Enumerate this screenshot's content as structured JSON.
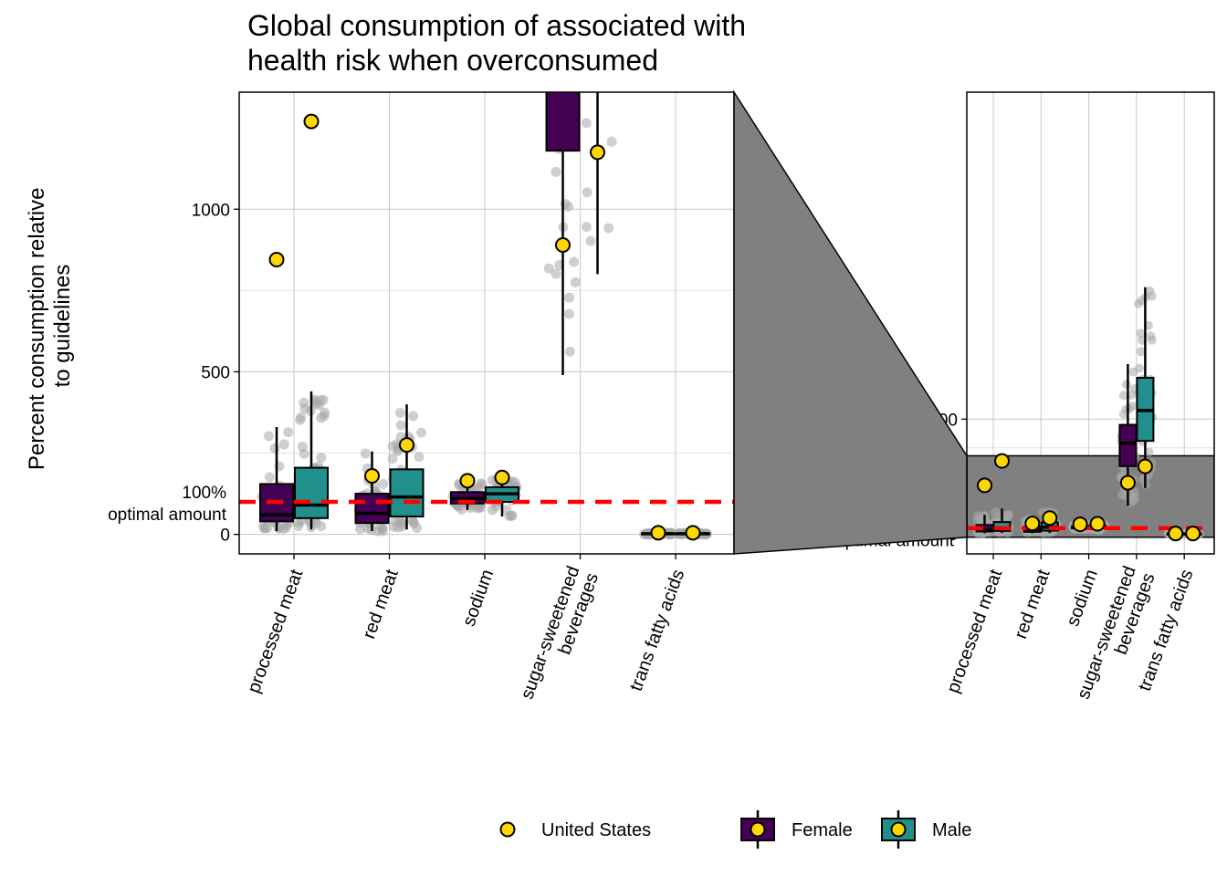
{
  "chart_data": {
    "type": "boxplot",
    "title_lines": [
      "Global consumption of associated with",
      "health risk when overconsumed"
    ],
    "ylabel_lines": [
      "Percent consumption relative",
      "to guidelines"
    ],
    "categories": [
      "processed meat",
      "red meat",
      "sodium",
      "sugar-sweetened beverages",
      "trans fatty acids"
    ],
    "category_label_lines": [
      [
        "processed meat"
      ],
      [
        "red meat"
      ],
      [
        "sodium"
      ],
      [
        "sugar-sweetened",
        "beverages"
      ],
      [
        "trans fatty acids"
      ]
    ],
    "reference_line": {
      "value": 100,
      "label_lines": [
        "100%",
        "optimal amount"
      ],
      "color": "#ff0000"
    },
    "series": [
      {
        "name": "Female",
        "color": "#440154",
        "boxes": [
          {
            "q1": 40,
            "median": 60,
            "q3": 155,
            "whisker_low": 10,
            "whisker_high": 330
          },
          {
            "q1": 35,
            "median": 65,
            "q3": 125,
            "whisker_low": 10,
            "whisker_high": 255
          },
          {
            "q1": 95,
            "median": 110,
            "q3": 130,
            "whisker_low": 75,
            "whisker_high": 160
          },
          {
            "q1": 1180,
            "median": 1580,
            "q3": 1900,
            "whisker_low": 490,
            "whisker_high": 2960
          },
          {
            "q1": 1,
            "median": 2,
            "q3": 3,
            "whisker_low": 0,
            "whisker_high": 5
          }
        ],
        "us_values": [
          845,
          180,
          165,
          890,
          5
        ]
      },
      {
        "name": "Male",
        "color": "#21908c",
        "boxes": [
          {
            "q1": 50,
            "median": 90,
            "q3": 205,
            "whisker_low": 15,
            "whisker_high": 440
          },
          {
            "q1": 55,
            "median": 115,
            "q3": 200,
            "whisker_low": 15,
            "whisker_high": 400
          },
          {
            "q1": 100,
            "median": 125,
            "q3": 145,
            "whisker_low": 55,
            "whisker_high": 170
          },
          {
            "q1": 1620,
            "median": 2150,
            "q3": 2720,
            "whisker_low": 800,
            "whisker_high": 4300
          },
          {
            "q1": 1,
            "median": 2,
            "q3": 3,
            "whisker_low": 0,
            "whisker_high": 5
          }
        ],
        "us_values": [
          1270,
          275,
          175,
          1175,
          5
        ]
      }
    ],
    "legend": {
      "us_label": "United States",
      "series_labels": [
        "Female",
        "Male"
      ],
      "us_color": "#ffd700"
    },
    "panels": [
      {
        "id": "zoom",
        "ylim": [
          -60,
          1360
        ],
        "yticks": [
          0,
          500,
          1000
        ]
      },
      {
        "id": "full",
        "ylim": [
          -350,
          7700
        ],
        "yticks": [
          0,
          500,
          1000,
          2000
        ]
      }
    ],
    "grid": true
  }
}
